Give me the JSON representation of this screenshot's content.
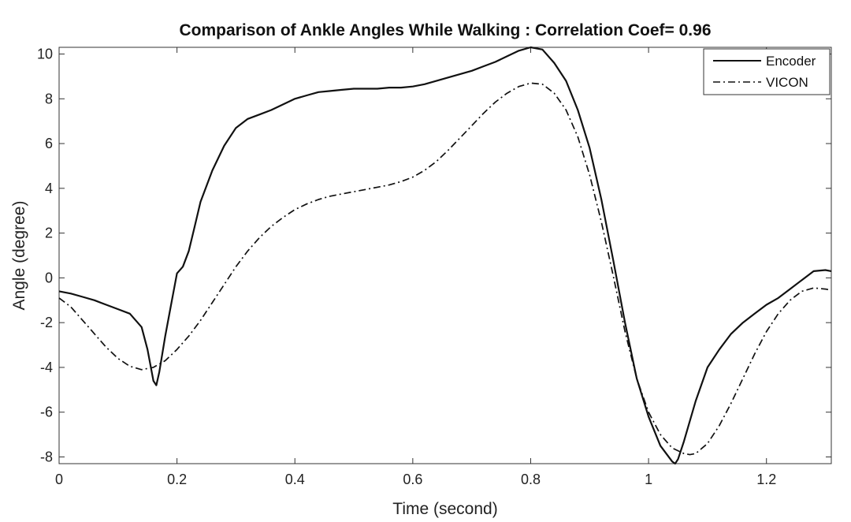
{
  "chart_data": {
    "type": "line",
    "title": "Comparison of Ankle Angles While Walking : Correlation Coef= 0.96",
    "xlabel": "Time (second)",
    "ylabel": "Angle (degree)",
    "xlim": [
      0,
      1.31
    ],
    "ylim": [
      -8.3,
      10.3
    ],
    "xticks": [
      0,
      0.2,
      0.4,
      0.6,
      0.8,
      1,
      1.2
    ],
    "xtick_labels": [
      "0",
      "0.2",
      "0.4",
      "0.6",
      "0.8",
      "1",
      "1.2"
    ],
    "yticks": [
      -8,
      -6,
      -4,
      -2,
      0,
      2,
      4,
      6,
      8,
      10
    ],
    "ytick_labels": [
      "-8",
      "-6",
      "-4",
      "-2",
      "0",
      "2",
      "4",
      "6",
      "8",
      "10"
    ],
    "grid": false,
    "legend_position": "top-right",
    "series": [
      {
        "name": "Encoder",
        "style": "solid",
        "color": "#111111",
        "x": [
          0,
          0.02,
          0.04,
          0.06,
          0.08,
          0.1,
          0.12,
          0.14,
          0.15,
          0.16,
          0.165,
          0.17,
          0.18,
          0.19,
          0.2,
          0.21,
          0.22,
          0.23,
          0.24,
          0.26,
          0.28,
          0.3,
          0.32,
          0.34,
          0.36,
          0.38,
          0.4,
          0.42,
          0.44,
          0.46,
          0.48,
          0.5,
          0.52,
          0.54,
          0.56,
          0.58,
          0.6,
          0.62,
          0.64,
          0.66,
          0.68,
          0.7,
          0.72,
          0.74,
          0.76,
          0.78,
          0.8,
          0.82,
          0.84,
          0.86,
          0.88,
          0.9,
          0.92,
          0.94,
          0.96,
          0.98,
          1.0,
          1.02,
          1.04,
          1.045,
          1.05,
          1.06,
          1.08,
          1.1,
          1.12,
          1.14,
          1.16,
          1.18,
          1.2,
          1.22,
          1.24,
          1.26,
          1.28,
          1.3,
          1.31
        ],
        "values": [
          -0.6,
          -0.7,
          -0.85,
          -1.0,
          -1.2,
          -1.4,
          -1.6,
          -2.2,
          -3.2,
          -4.6,
          -4.8,
          -4.2,
          -2.6,
          -1.2,
          0.2,
          0.5,
          1.2,
          2.3,
          3.4,
          4.8,
          5.9,
          6.7,
          7.1,
          7.3,
          7.5,
          7.75,
          8.0,
          8.15,
          8.3,
          8.35,
          8.4,
          8.45,
          8.45,
          8.45,
          8.5,
          8.5,
          8.55,
          8.65,
          8.8,
          8.95,
          9.1,
          9.25,
          9.45,
          9.65,
          9.9,
          10.15,
          10.3,
          10.2,
          9.6,
          8.8,
          7.5,
          5.8,
          3.5,
          0.8,
          -2.0,
          -4.5,
          -6.2,
          -7.5,
          -8.2,
          -8.3,
          -8.1,
          -7.3,
          -5.5,
          -4.0,
          -3.2,
          -2.5,
          -2.0,
          -1.6,
          -1.2,
          -0.9,
          -0.5,
          -0.1,
          0.3,
          0.35,
          0.3
        ]
      },
      {
        "name": "VICON",
        "style": "dashdot",
        "color": "#111111",
        "x": [
          0,
          0.02,
          0.04,
          0.06,
          0.08,
          0.1,
          0.12,
          0.14,
          0.16,
          0.18,
          0.2,
          0.22,
          0.24,
          0.26,
          0.28,
          0.3,
          0.32,
          0.34,
          0.36,
          0.38,
          0.4,
          0.42,
          0.44,
          0.46,
          0.48,
          0.5,
          0.52,
          0.54,
          0.56,
          0.58,
          0.6,
          0.62,
          0.64,
          0.66,
          0.68,
          0.7,
          0.72,
          0.74,
          0.76,
          0.78,
          0.8,
          0.82,
          0.84,
          0.86,
          0.88,
          0.9,
          0.92,
          0.94,
          0.96,
          0.98,
          1.0,
          1.02,
          1.04,
          1.06,
          1.07,
          1.08,
          1.1,
          1.12,
          1.14,
          1.16,
          1.18,
          1.2,
          1.22,
          1.24,
          1.26,
          1.28,
          1.3,
          1.31
        ],
        "values": [
          -0.9,
          -1.3,
          -1.9,
          -2.5,
          -3.1,
          -3.6,
          -3.95,
          -4.1,
          -4.0,
          -3.7,
          -3.2,
          -2.6,
          -1.9,
          -1.1,
          -0.3,
          0.5,
          1.2,
          1.8,
          2.3,
          2.7,
          3.05,
          3.3,
          3.5,
          3.65,
          3.75,
          3.85,
          3.95,
          4.05,
          4.15,
          4.3,
          4.5,
          4.8,
          5.2,
          5.7,
          6.25,
          6.8,
          7.35,
          7.85,
          8.25,
          8.55,
          8.7,
          8.65,
          8.25,
          7.5,
          6.3,
          4.6,
          2.5,
          0.1,
          -2.4,
          -4.5,
          -6.0,
          -7.0,
          -7.6,
          -7.85,
          -7.9,
          -7.85,
          -7.4,
          -6.6,
          -5.6,
          -4.5,
          -3.4,
          -2.4,
          -1.6,
          -1.0,
          -0.6,
          -0.45,
          -0.5,
          -0.55
        ]
      }
    ]
  }
}
